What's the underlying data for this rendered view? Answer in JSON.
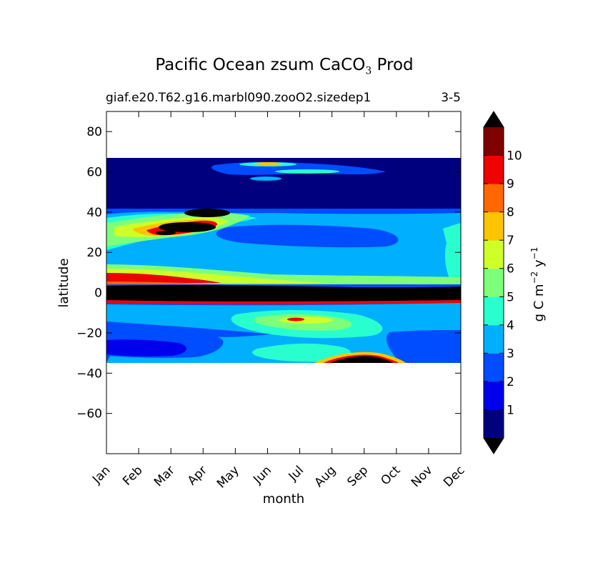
{
  "chart_data": {
    "type": "heatmap",
    "title_main": "Pacific Ocean zsum CaCO",
    "title_sub_script": "3",
    "title_suffix": " Prod",
    "subtitle_left": "giaf.e20.T62.g16.marbl090.zooO2.sizedep1",
    "subtitle_right": "3-5",
    "xlabel": "month",
    "ylabel": "latitude",
    "x_ticks": [
      "Jan",
      "Feb",
      "Mar",
      "Apr",
      "May",
      "Jun",
      "Jul",
      "Aug",
      "Sep",
      "Oct",
      "Nov",
      "Dec"
    ],
    "y_ticks": [
      "80",
      "60",
      "40",
      "20",
      "0",
      "−20",
      "−40",
      "−60"
    ],
    "ylim": [
      -80,
      90
    ],
    "colorbar": {
      "label_prefix": "g C m",
      "label_exp1": "−2",
      "label_mid": " y",
      "label_exp2": "−1",
      "tick_labels": [
        "1",
        "2",
        "3",
        "4",
        "5",
        "6",
        "7",
        "8",
        "9",
        "10"
      ],
      "levels": [
        0,
        1,
        2,
        3,
        4,
        5,
        6,
        7,
        8,
        9,
        10,
        11
      ],
      "colors": [
        "#00007f",
        "#0000ed",
        "#004cff",
        "#00b0ff",
        "#29ffce",
        "#7dff7a",
        "#ceff29",
        "#ffc400",
        "#ff6800",
        "#ed0400",
        "#7f0000"
      ],
      "extend_under_color": "#000000",
      "extend_over_color": "#000000"
    },
    "data_extent": {
      "lat_min": -34,
      "lat_max": 68
    }
  }
}
